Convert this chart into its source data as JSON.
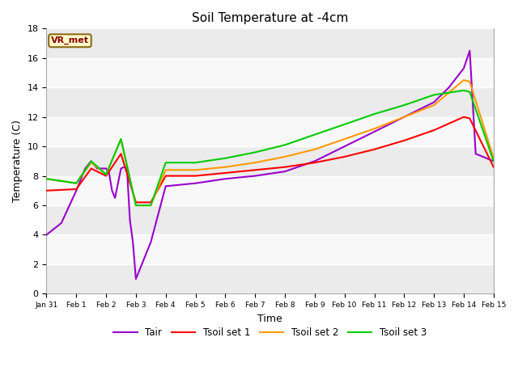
{
  "title": "Soil Temperature at -4cm",
  "xlabel": "Time",
  "ylabel": "Temperature (C)",
  "ylim": [
    0,
    18
  ],
  "fig_bg": "#ffffff",
  "plot_bg_light": "#f0f0f0",
  "plot_bg_dark": "#e0e0e0",
  "annotation_text": "VR_met",
  "annotation_color": "#8B0000",
  "annotation_bg": "#ffffcc",
  "annotation_edge": "#8B6914",
  "legend_entries": [
    "Tair",
    "Tsoil set 1",
    "Tsoil set 2",
    "Tsoil set 3"
  ],
  "line_colors": [
    "#9900cc",
    "#ff0000",
    "#ff9900",
    "#00cc00"
  ],
  "xtick_positions": [
    0,
    1,
    2,
    3,
    4,
    5,
    6,
    7,
    8,
    9,
    10,
    11,
    12,
    13,
    14,
    15
  ],
  "xtick_labels": [
    "Jan 31",
    "Feb 1",
    "Feb 2",
    "Feb 3",
    "Feb 4",
    "Feb 5",
    "Feb 6",
    "Feb 7",
    "Feb 8",
    "Feb 9",
    "Feb 10",
    "Feb 11",
    "Feb 12",
    "Feb 13",
    "Feb 14",
    "Feb 15"
  ],
  "ytick_positions": [
    0,
    2,
    4,
    6,
    8,
    10,
    12,
    14,
    16,
    18
  ],
  "Tair_x": [
    0,
    0.5,
    1,
    1.3,
    1.5,
    1.7,
    2,
    2.1,
    2.2,
    2.3,
    2.4,
    2.5,
    2.6,
    2.7,
    2.8,
    2.9,
    3,
    3.5,
    4,
    5,
    6,
    7,
    8,
    9,
    10,
    11,
    12,
    13,
    13.5,
    14,
    14.2,
    14.4,
    15
  ],
  "Tair_y": [
    4.0,
    4.8,
    7.0,
    8.5,
    9.0,
    8.5,
    8.5,
    8.2,
    7.0,
    6.5,
    7.5,
    8.5,
    8.6,
    8.5,
    5.0,
    3.5,
    1.0,
    3.5,
    7.3,
    7.5,
    7.8,
    8.0,
    8.3,
    9.0,
    10.0,
    11.0,
    12.0,
    13.0,
    14.0,
    15.3,
    16.5,
    9.5,
    9.0
  ],
  "Tsoil1_x": [
    0,
    1,
    1.5,
    2,
    2.5,
    3,
    3.5,
    4,
    5,
    6,
    7,
    8,
    9,
    10,
    11,
    12,
    13,
    14,
    14.2,
    15
  ],
  "Tsoil1_y": [
    7.0,
    7.1,
    8.5,
    8.0,
    9.5,
    6.2,
    6.2,
    8.0,
    8.0,
    8.2,
    8.4,
    8.6,
    8.9,
    9.3,
    9.8,
    10.4,
    11.1,
    12.0,
    11.9,
    8.6
  ],
  "Tsoil2_x": [
    0,
    1,
    1.5,
    2,
    2.5,
    3,
    3.5,
    4,
    5,
    6,
    7,
    8,
    9,
    10,
    11,
    12,
    13,
    14,
    14.2,
    15
  ],
  "Tsoil2_y": [
    7.8,
    7.5,
    8.9,
    8.1,
    10.5,
    6.0,
    6.0,
    8.4,
    8.4,
    8.6,
    8.9,
    9.3,
    9.8,
    10.5,
    11.2,
    12.0,
    12.8,
    14.5,
    14.4,
    9.2
  ],
  "Tsoil3_x": [
    0,
    1,
    1.5,
    2,
    2.5,
    3,
    3.5,
    4,
    5,
    6,
    7,
    8,
    9,
    10,
    11,
    12,
    13,
    14,
    14.2,
    15
  ],
  "Tsoil3_y": [
    7.8,
    7.5,
    9.0,
    8.1,
    10.5,
    6.0,
    6.0,
    8.9,
    8.9,
    9.2,
    9.6,
    10.1,
    10.8,
    11.5,
    12.2,
    12.8,
    13.5,
    13.8,
    13.7,
    9.0
  ]
}
